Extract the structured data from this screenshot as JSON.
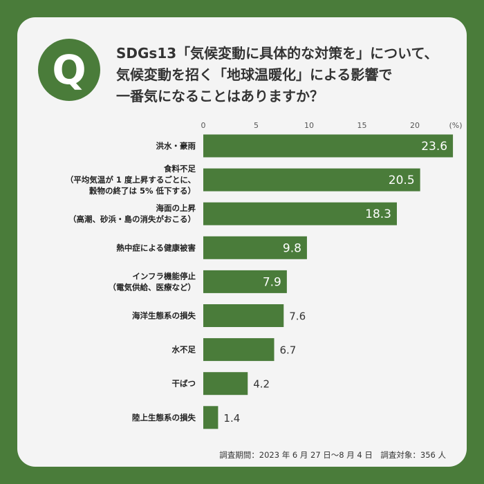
{
  "question": {
    "badge": "Q",
    "lines": [
      "SDGs13「気候変動に具体的な対策を」について、",
      "気候変動を招く「地球温暖化」による影響で",
      "一番気になることはありますか？"
    ]
  },
  "chart_data": {
    "type": "bar",
    "orientation": "horizontal",
    "unit_label": "(%)",
    "xlim": [
      0,
      25
    ],
    "ticks": [
      0,
      5,
      10,
      15,
      20
    ],
    "grid": false,
    "bar_color": "#4a7c3a",
    "categories": [
      [
        "洪水・豪雨"
      ],
      [
        "食料不足",
        "（平均気温が 1 度上昇するごとに、",
        "穀物の終了は 5% 低下する）"
      ],
      [
        "海面の上昇",
        "（高潮、砂浜・島の消失がおこる）"
      ],
      [
        "熱中症による健康被害"
      ],
      [
        "インフラ機能停止",
        "（電気供給、医療など）"
      ],
      [
        "海洋生態系の損失"
      ],
      [
        "水不足"
      ],
      [
        "干ばつ"
      ],
      [
        "陸上生態系の損失"
      ]
    ],
    "values": [
      23.6,
      20.5,
      18.3,
      9.8,
      7.9,
      7.6,
      6.7,
      4.2,
      1.4
    ],
    "value_labels": [
      "23.6",
      "20.5",
      "18.3",
      "9.8",
      "7.9",
      "7.6",
      "6.7",
      "4.2",
      "1.4"
    ]
  },
  "footnote": "調査期間：2023 年 6 月 27 日〜8 月 4 日　調査対象：356 人"
}
